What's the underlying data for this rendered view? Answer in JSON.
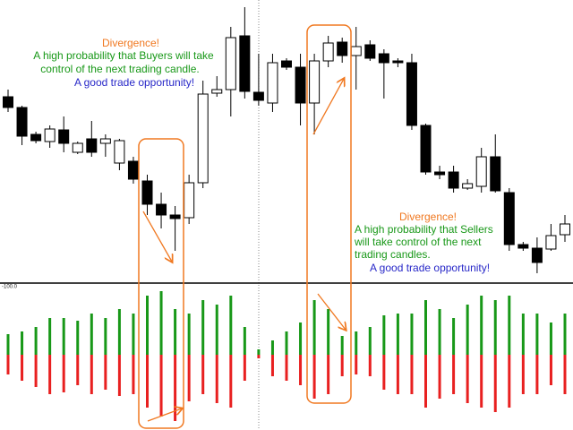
{
  "chart_data": [
    {
      "type": "candlestick",
      "open": [
        212,
        200,
        170,
        162,
        175,
        150,
        165,
        160,
        138,
        140,
        118,
        92,
        80,
        77,
        116,
        216,
        220,
        280,
        217,
        205,
        252,
        245,
        205,
        252,
        273,
        258,
        270,
        260,
        252,
        250,
        180,
        128,
        128,
        110,
        112,
        145,
        105,
        47,
        43,
        42,
        58
      ],
      "high": [
        220,
        202,
        173,
        180,
        190,
        162,
        185,
        170,
        165,
        145,
        125,
        105,
        90,
        125,
        230,
        235,
        290,
        312,
        260,
        260,
        255,
        260,
        260,
        280,
        278,
        290,
        275,
        265,
        255,
        260,
        182,
        135,
        135,
        120,
        155,
        170,
        110,
        50,
        55,
        70,
        80
      ],
      "low": [
        195,
        158,
        160,
        155,
        150,
        148,
        145,
        145,
        130,
        115,
        80,
        65,
        40,
        70,
        110,
        212,
        190,
        210,
        202,
        195,
        242,
        180,
        170,
        245,
        250,
        220,
        252,
        210,
        245,
        175,
        125,
        120,
        105,
        108,
        105,
        105,
        40,
        40,
        15,
        40,
        50
      ],
      "close": [
        200,
        168,
        163,
        176,
        160,
        160,
        150,
        165,
        163,
        120,
        92,
        80,
        76,
        116,
        215,
        220,
        278,
        218,
        208,
        250,
        245,
        205,
        252,
        272,
        258,
        268,
        255,
        250,
        250,
        180,
        128,
        125,
        110,
        115,
        145,
        107,
        47,
        43,
        27,
        57,
        70
      ],
      "ylim": [
        5,
        320
      ],
      "up_color": "#ffffff",
      "down_color": "#000000",
      "annotations": [
        {
          "title": "Divergence!",
          "lines": [
            "A high probability that Buyers will take",
            "control of the next trading candle.",
            "A good trade opportunity!"
          ]
        },
        {
          "title": "Divergence!",
          "lines": [
            "A high probability that Sellers",
            "will take control of the next",
            "trading candles.",
            "A good trade opportunity!"
          ]
        }
      ]
    },
    {
      "type": "bar",
      "label": "-100.0",
      "ylim": [
        -84,
        80
      ],
      "series": [
        {
          "color": "#189818",
          "values": [
            23,
            26,
            31,
            41,
            41,
            38,
            46,
            41,
            51,
            46,
            66,
            71,
            51,
            46,
            61,
            56,
            66,
            31,
            6,
            16,
            26,
            36,
            61,
            51,
            21,
            26,
            31,
            44,
            46,
            46,
            61,
            51,
            41,
            56,
            66,
            61,
            66,
            46,
            46,
            36,
            46
          ]
        },
        {
          "color": "#e82020",
          "values": [
            -22,
            -29,
            -36,
            -44,
            -42,
            -34,
            -44,
            -39,
            -46,
            -44,
            -59,
            -69,
            -74,
            -52,
            -44,
            -54,
            -59,
            -29,
            -4,
            -24,
            -29,
            -34,
            -49,
            -44,
            -24,
            -22,
            -24,
            -39,
            -44,
            -44,
            -59,
            -49,
            -44,
            -54,
            -59,
            -64,
            -59,
            -44,
            -44,
            -34,
            -44
          ]
        }
      ]
    }
  ]
}
